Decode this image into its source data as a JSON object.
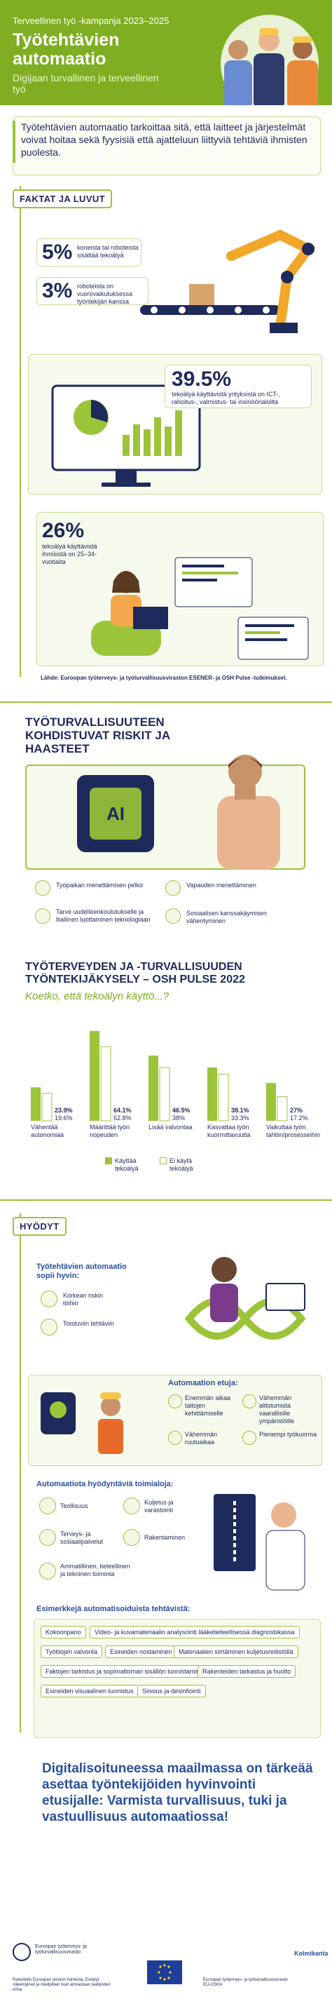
{
  "header": {
    "campaign": "Terveellinen työ -kampanja 2023–2025",
    "title": "Työtehtävien automaatio",
    "subtitle": "Digijaan turvallinen ja terveellinen työ"
  },
  "intro": "Työtehtävien automaatio tarkoittaa sitä, että laitteet ja järjestelmät voivat hoitaa sekä fyysisiä että ajatteluun liittyviä tehtäviä ihmisten puolesta.",
  "facts": {
    "title": "FAKTAT JA LUVUT",
    "items": [
      {
        "value": "5%",
        "text": "koneista tai roboteista sisältää tekoälyä"
      },
      {
        "value": "3%",
        "text": "roboteista on vuorovaikutuksessa työntekijän kanssa"
      },
      {
        "value": "39.5%",
        "text": "tekoälyä käyttävistä yrityksistä on ICT-, rahoitus-, valmistus- tai insinöörialoilta"
      },
      {
        "value": "26%",
        "text": "tekoälyä käyttävistä ihmisistä on 25–34-vuotiaita"
      }
    ],
    "source": "Lähde: Euroopan työterveys- ja työturvallisuusviraston ESENER- ja OSH Pulse -tutkimukset."
  },
  "risks": {
    "title": "TYÖTURVALLISUUTEEN KOHDISTUVAT RISKIT JA HAASTEET",
    "ai_label": "AI",
    "items": [
      {
        "icon": "briefcase-icon",
        "text": "Työpaikan menettämisen pelko"
      },
      {
        "icon": "hand-icon",
        "text": "Vapauden menettäminen"
      },
      {
        "icon": "book-icon",
        "text": "Tarve uudelleenkoulutukselle ja liiallinen luottaminen teknologiaan"
      },
      {
        "icon": "people-icon",
        "text": "Sosiaalisen kanssakäymisen vähentyminen"
      }
    ]
  },
  "survey": {
    "title": "TYÖTERVEYDEN JA -TURVALLISUUDEN TYÖNTEKIJÄKYSELY – OSH PULSE 2022",
    "question": "Koetko, että tekoälyn käyttö...?",
    "legend": [
      "Käyttää tekoälyä",
      "Ei käytä tekoälyä"
    ],
    "colors": {
      "uses": "#9cc43a",
      "not": "#ffffff"
    }
  },
  "chart_data": {
    "type": "bar",
    "categories": [
      "Vähentää autonomiaa",
      "Määrittää työn nopeuden",
      "Lisää valvontaa",
      "Kasvattaa työn kuormittavuutta",
      "Vaikuttaa työn tahtiin/prosesseihin"
    ],
    "series": [
      {
        "name": "Käyttää tekoälyä",
        "values": [
          23.9,
          64.1,
          46.5,
          38.1,
          27
        ]
      },
      {
        "name": "Ei käytä tekoälyä",
        "values": [
          19.6,
          52.8,
          38,
          33.3,
          17.2
        ]
      }
    ],
    "value_labels": {
      "uses": [
        "23.9%",
        "64.1%",
        "46.5%",
        "38.1%",
        "27%"
      ],
      "not": [
        "19.6%",
        "52.8%",
        "38%",
        "33.3%",
        "17.2%"
      ]
    }
  },
  "benefits": {
    "title": "HYÖDYT",
    "who_title": "Työtehtävien automaatio sopii hyvin:",
    "who": [
      {
        "icon": "warning-icon",
        "text": "Korkean riskin töihin"
      },
      {
        "icon": "repeat-icon",
        "text": "Toistuviin tehtäviin"
      }
    ],
    "adv_title": "Automaation etuja:",
    "adv": [
      {
        "icon": "clock-icon",
        "text": "Enemmän aikaa taitojen kehittämiselle"
      },
      {
        "icon": "shield-icon",
        "text": "Vähemmän altistumista vaarallisille ympäristöille"
      },
      {
        "icon": "person-icon",
        "text": "Vähemmän ruutuaikaa"
      },
      {
        "icon": "weight-icon",
        "text": "Pienempi työkuorma"
      }
    ],
    "sectors_title": "Automaatiota hyödyntäviä toimialoja:",
    "sectors": [
      {
        "icon": "factory-icon",
        "text": "Teollisuus"
      },
      {
        "icon": "truck-icon",
        "text": "Kuljetus ja varastointi"
      },
      {
        "icon": "health-icon",
        "text": "Terveys- ja sosiaalipalvelut"
      },
      {
        "icon": "building-icon",
        "text": "Rakentaminen"
      },
      {
        "icon": "science-icon",
        "text": "Ammatillinen, tieteellinen ja tekninen toiminta"
      }
    ],
    "tasks_title": "Esimerkkejä automatisoiduista tehtävistä:",
    "tasks": [
      "Kokoonpano",
      "Video- ja kuvamateriaalin analysointi lääketieteellisessä diagnostiikassa",
      "Työtilojen valvonta",
      "Esineiden nostaminen",
      "Materiaalien siirtäminen kuljetusreitistöllä",
      "Faktojen tarkistus ja sopimattoman sisällön tunnistaminen",
      "Rakenteiden tarkastus ja huolto",
      "Esineiden visuaalinen tunnistus",
      "Siivous ja desinfiointi"
    ]
  },
  "closing": "Digitalisoituneessa maailmassa on tärkeää asettaa työntekijöiden hyvinvointi etusijalle: Varmista turvallisuus, tuki ja vastuullisuus automaatiossa!",
  "footer": {
    "left": "Euroopan työterveys- ja työturvallisuusvirasto",
    "left_note": "Rahoitettu Euroopan unionin toimesta. Esitetyt näkemykset ja mielipiteet ovat ainoastaan laatijoiden omia.",
    "right_note": "Euroopan työterveys- ja työturvallisuusvirasto EU-OSHA",
    "right_logo": "Kolmikanta"
  }
}
